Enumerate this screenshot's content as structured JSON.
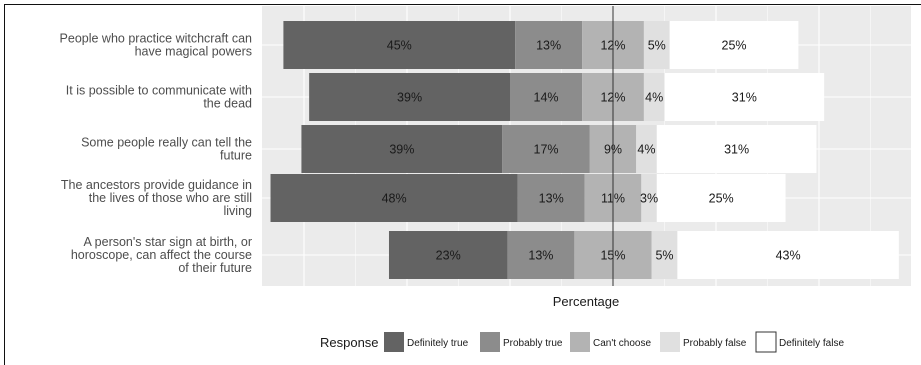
{
  "chart_data": {
    "type": "bar",
    "orientation": "horizontal",
    "stacked": "diverging",
    "title": "",
    "xlabel": "Percentage",
    "ylabel": "",
    "grid": true,
    "legend": {
      "title": "Response",
      "placement": "bottom",
      "entries": [
        "Definitely true",
        "Probably true",
        "Can't choose",
        "Probably false",
        "Definitely false"
      ]
    },
    "categories": [
      [
        "People who practice witchcraft can",
        "have magical powers"
      ],
      [
        "It is possible to communicate with",
        "the dead"
      ],
      [
        "Some people really can tell the",
        "future"
      ],
      [
        "The ancestors provide guidance in",
        "the lives of those who are still",
        "living"
      ],
      [
        "A person's star sign at birth, or",
        "horoscope, can affect the course",
        "of their future"
      ]
    ],
    "series": [
      {
        "name": "Definitely true",
        "values": [
          45,
          39,
          39,
          48,
          23
        ],
        "color": "#636363"
      },
      {
        "name": "Probably true",
        "values": [
          13,
          14,
          17,
          13,
          13
        ],
        "color": "#8c8c8c"
      },
      {
        "name": "Can't choose",
        "values": [
          12,
          12,
          9,
          11,
          15
        ],
        "color": "#b3b3b3"
      },
      {
        "name": "Probably false",
        "values": [
          5,
          4,
          4,
          3,
          5
        ],
        "color": "#e0e0e0"
      },
      {
        "name": "Definitely false",
        "values": [
          25,
          31,
          31,
          25,
          43
        ],
        "color": "#ffffff"
      }
    ],
    "value_labels": [
      [
        "45%",
        "13%",
        "12%",
        "5%",
        "25%"
      ],
      [
        "39%",
        "14%",
        "12%",
        "4%",
        "31%"
      ],
      [
        "39%",
        "17%",
        "9%",
        "4%",
        "31%"
      ],
      [
        "48%",
        "13%",
        "11%",
        "3%",
        "25%"
      ],
      [
        "23%",
        "13%",
        "15%",
        "5%",
        "43%"
      ]
    ],
    "colors": {
      "panel": "#ebebeb",
      "grid": "#ffffff",
      "zero_line": "#333333"
    }
  }
}
